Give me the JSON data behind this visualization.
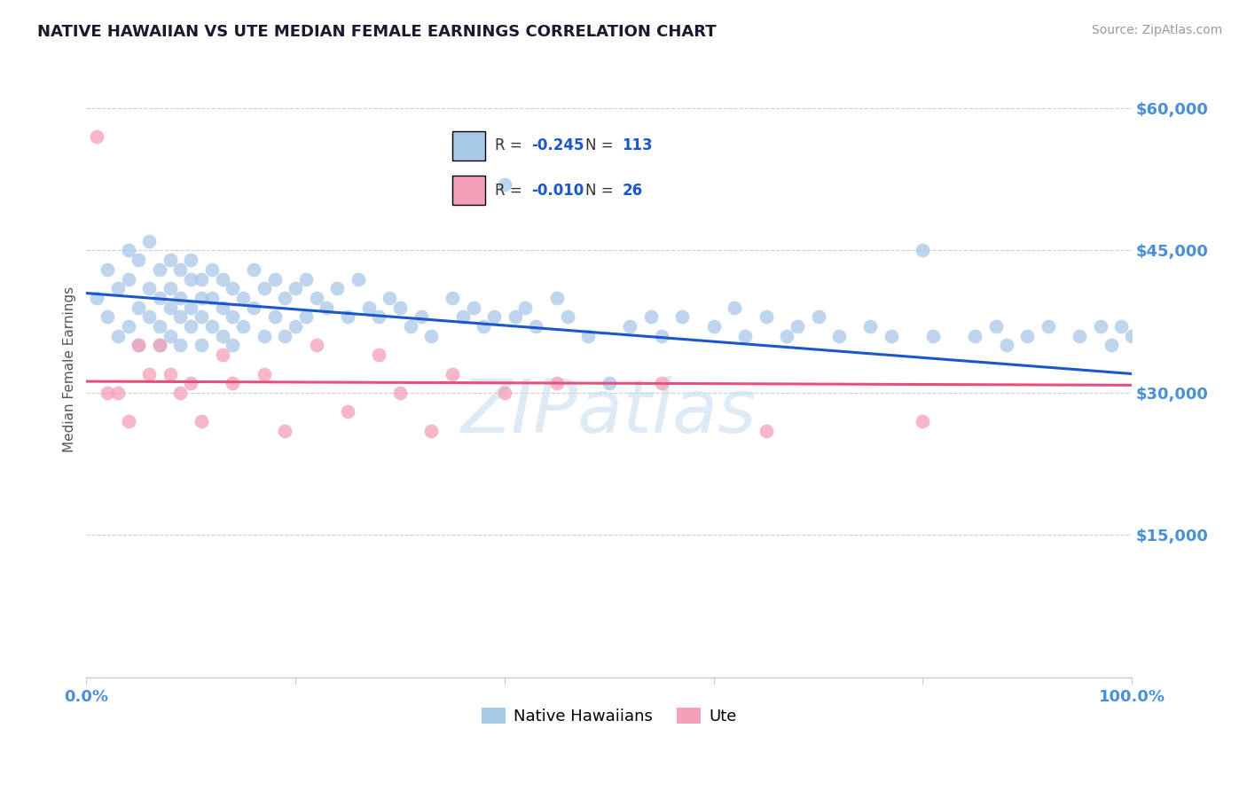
{
  "title": "NATIVE HAWAIIAN VS UTE MEDIAN FEMALE EARNINGS CORRELATION CHART",
  "source": "Source: ZipAtlas.com",
  "ylabel": "Median Female Earnings",
  "legend_blue_label": "Native Hawaiians",
  "legend_pink_label": "Ute",
  "blue_R": -0.245,
  "blue_N": 113,
  "pink_R": -0.01,
  "pink_N": 26,
  "blue_color": "#a8c8e8",
  "pink_color": "#f4a0b8",
  "blue_line_color": "#1a56cc",
  "pink_line_color": "#e8507a",
  "axis_label_color": "#4a90d9",
  "title_color": "#1a1a2e",
  "source_color": "#999999",
  "ylabel_color": "#555555",
  "watermark_color": "#c8dff0",
  "ytick_vals": [
    0,
    15000,
    30000,
    45000,
    60000
  ],
  "ytick_labels": [
    "",
    "$15,000",
    "$30,000",
    "$45,000",
    "$60,000"
  ],
  "xlim": [
    0,
    100
  ],
  "ylim": [
    0,
    65000
  ],
  "blue_x": [
    1,
    2,
    2,
    3,
    3,
    4,
    4,
    4,
    5,
    5,
    5,
    6,
    6,
    6,
    7,
    7,
    7,
    7,
    8,
    8,
    8,
    8,
    9,
    9,
    9,
    9,
    10,
    10,
    10,
    10,
    11,
    11,
    11,
    11,
    12,
    12,
    12,
    13,
    13,
    13,
    14,
    14,
    14,
    15,
    15,
    16,
    16,
    17,
    17,
    18,
    18,
    19,
    19,
    20,
    20,
    21,
    21,
    22,
    23,
    24,
    25,
    26,
    27,
    28,
    29,
    30,
    31,
    32,
    33,
    35,
    36,
    37,
    38,
    39,
    40,
    41,
    42,
    43,
    45,
    46,
    48,
    50,
    52,
    54,
    55,
    57,
    60,
    62,
    63,
    65,
    67,
    68,
    70,
    72,
    75,
    77,
    80,
    81,
    85,
    87,
    88,
    90,
    92,
    95,
    97,
    98,
    99,
    100,
    101,
    102,
    103,
    104,
    105
  ],
  "blue_y": [
    40000,
    43000,
    38000,
    41000,
    36000,
    45000,
    42000,
    37000,
    44000,
    39000,
    35000,
    46000,
    41000,
    38000,
    43000,
    40000,
    37000,
    35000,
    44000,
    41000,
    39000,
    36000,
    43000,
    40000,
    38000,
    35000,
    44000,
    42000,
    39000,
    37000,
    42000,
    40000,
    38000,
    35000,
    43000,
    40000,
    37000,
    42000,
    39000,
    36000,
    41000,
    38000,
    35000,
    40000,
    37000,
    43000,
    39000,
    41000,
    36000,
    42000,
    38000,
    40000,
    36000,
    41000,
    37000,
    42000,
    38000,
    40000,
    39000,
    41000,
    38000,
    42000,
    39000,
    38000,
    40000,
    39000,
    37000,
    38000,
    36000,
    40000,
    38000,
    39000,
    37000,
    38000,
    52000,
    38000,
    39000,
    37000,
    40000,
    38000,
    36000,
    31000,
    37000,
    38000,
    36000,
    38000,
    37000,
    39000,
    36000,
    38000,
    36000,
    37000,
    38000,
    36000,
    37000,
    36000,
    45000,
    36000,
    36000,
    37000,
    35000,
    36000,
    37000,
    36000,
    37000,
    35000,
    37000,
    36000,
    35000,
    37000,
    35000,
    36000,
    35000
  ],
  "pink_x": [
    1,
    2,
    3,
    4,
    5,
    6,
    7,
    8,
    9,
    10,
    11,
    13,
    14,
    17,
    19,
    22,
    25,
    28,
    30,
    33,
    35,
    40,
    45,
    55,
    65,
    80
  ],
  "pink_y": [
    57000,
    30000,
    30000,
    27000,
    35000,
    32000,
    35000,
    32000,
    30000,
    31000,
    27000,
    34000,
    31000,
    32000,
    26000,
    35000,
    28000,
    34000,
    30000,
    26000,
    32000,
    30000,
    31000,
    31000,
    26000,
    27000
  ],
  "blue_trend_x0": 0,
  "blue_trend_y0": 40500,
  "blue_trend_x1": 100,
  "blue_trend_y1": 32000,
  "pink_trend_x0": 0,
  "pink_trend_y0": 31200,
  "pink_trend_x1": 100,
  "pink_trend_y1": 30800
}
